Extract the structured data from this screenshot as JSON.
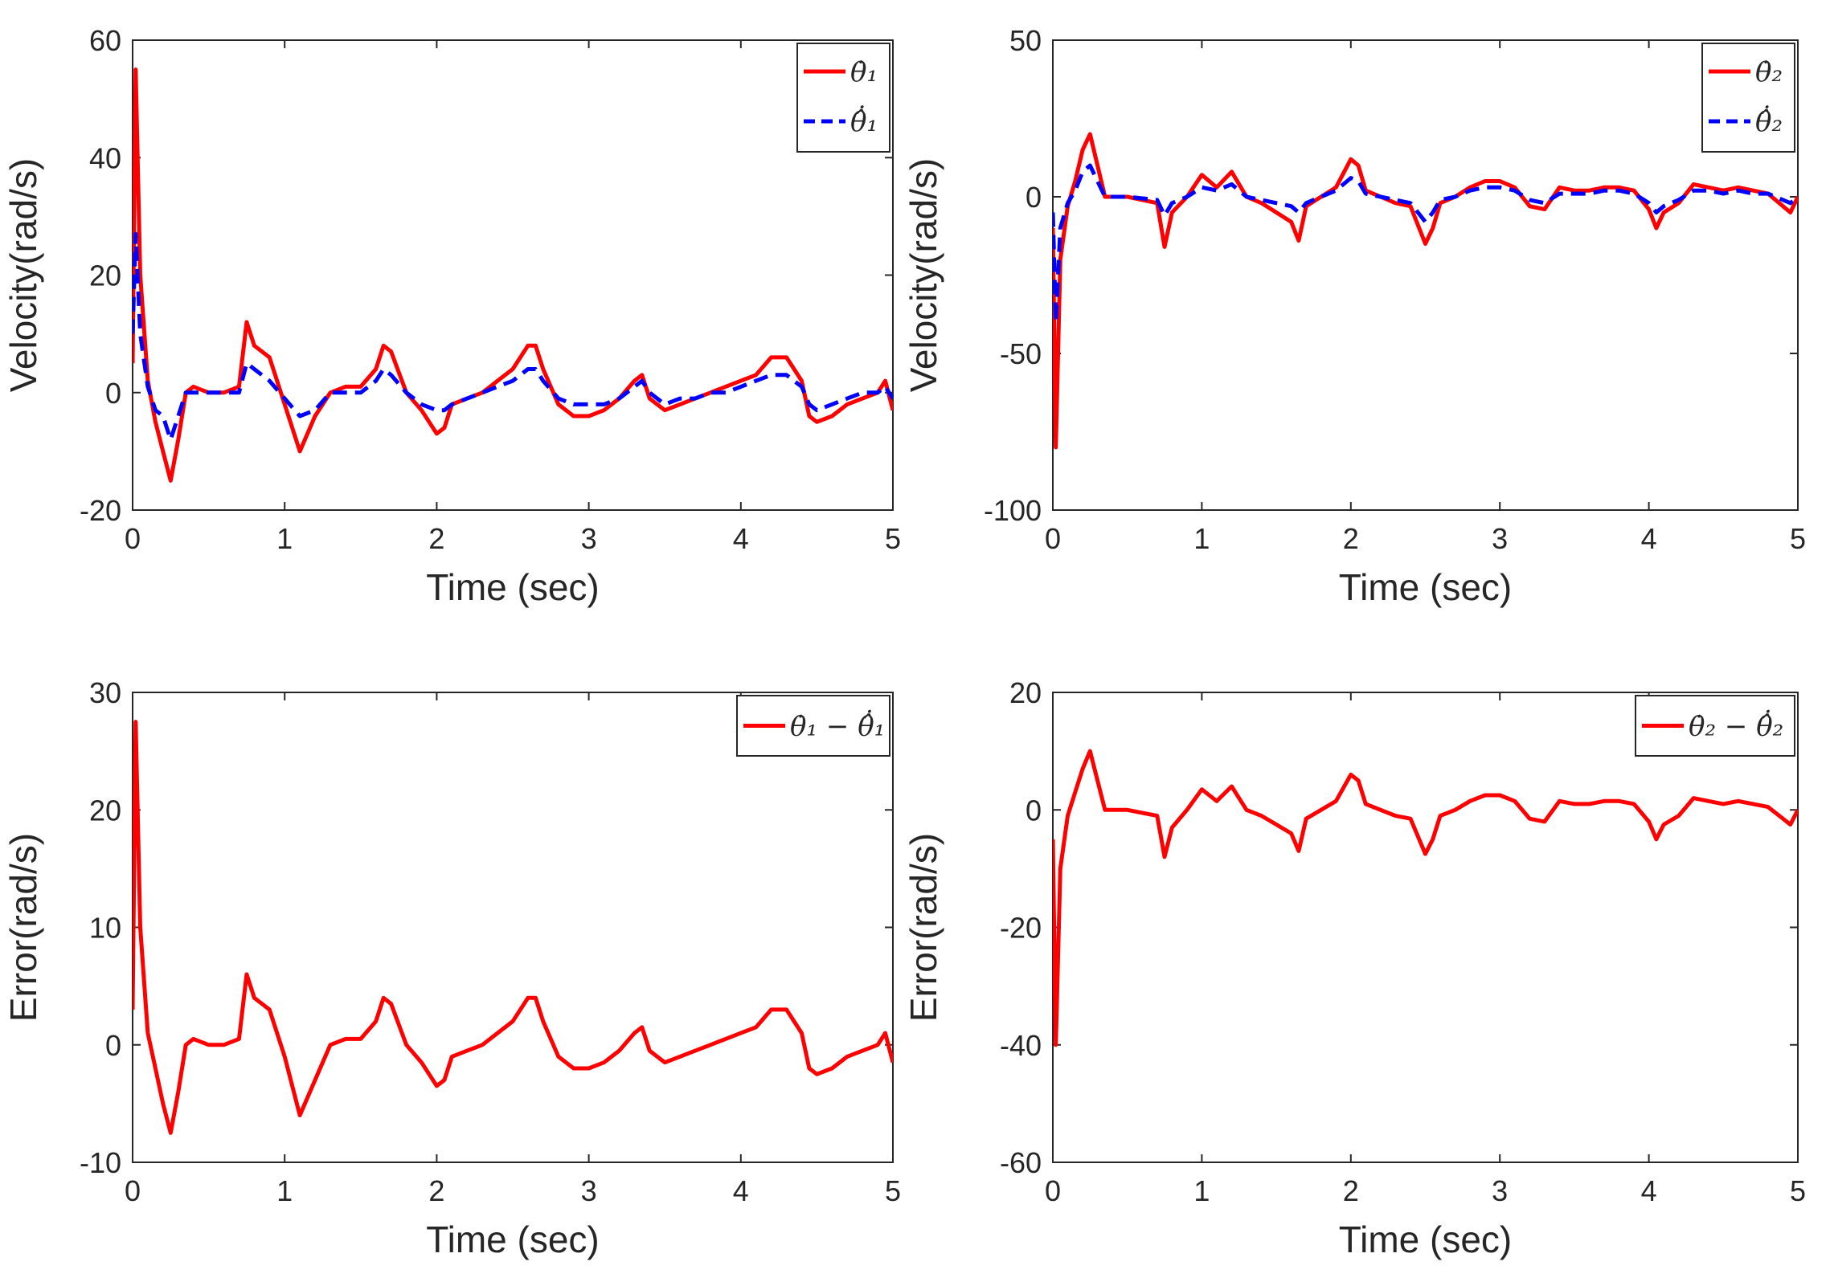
{
  "chart_data": [
    {
      "type": "line",
      "title": "",
      "xlabel": "Time (sec)",
      "ylabel": "Velocity(rad/s)",
      "xlim": [
        0,
        5
      ],
      "ylim": [
        -20,
        60
      ],
      "xticks": [
        "0",
        "1",
        "2",
        "3",
        "4",
        "5"
      ],
      "yticks": [
        "-20",
        "0",
        "20",
        "40",
        "60"
      ],
      "legend_position": "top-right",
      "grid": false,
      "x": [
        0,
        0.02,
        0.05,
        0.1,
        0.15,
        0.2,
        0.25,
        0.3,
        0.35,
        0.4,
        0.5,
        0.6,
        0.7,
        0.75,
        0.8,
        0.9,
        1.0,
        1.1,
        1.2,
        1.3,
        1.4,
        1.5,
        1.6,
        1.65,
        1.7,
        1.8,
        1.9,
        2.0,
        2.05,
        2.1,
        2.2,
        2.3,
        2.4,
        2.5,
        2.6,
        2.65,
        2.7,
        2.8,
        2.9,
        3.0,
        3.1,
        3.2,
        3.3,
        3.35,
        3.4,
        3.5,
        3.6,
        3.7,
        3.8,
        3.9,
        4.0,
        4.1,
        4.2,
        4.3,
        4.4,
        4.45,
        4.5,
        4.6,
        4.7,
        4.8,
        4.9,
        4.95,
        5.0
      ],
      "series": [
        {
          "name": "θ̇₁",
          "color": "#ff0000",
          "style": "solid",
          "values": [
            5,
            55,
            20,
            2,
            -5,
            -10,
            -15,
            -8,
            0,
            1,
            0,
            0,
            1,
            12,
            8,
            6,
            -2,
            -10,
            -4,
            0,
            1,
            1,
            4,
            8,
            7,
            0,
            -3,
            -7,
            -6,
            -2,
            -1,
            0,
            2,
            4,
            8,
            8,
            4,
            -2,
            -4,
            -4,
            -3,
            -1,
            2,
            3,
            -1,
            -3,
            -2,
            -1,
            0,
            1,
            2,
            3,
            6,
            6,
            2,
            -4,
            -5,
            -4,
            -2,
            -1,
            0,
            2,
            -3
          ]
        },
        {
          "name": "θ̂̇₁",
          "color": "#0000ff",
          "style": "dashed",
          "values": [
            10,
            27,
            10,
            1,
            -3,
            -4,
            -8,
            -4,
            0,
            0,
            0,
            0,
            0,
            5,
            4,
            2,
            -1,
            -4,
            -3,
            0,
            0,
            0,
            2,
            4,
            3,
            0,
            -2,
            -3,
            -3,
            -2,
            -1,
            0,
            1,
            2,
            4,
            4,
            2,
            -1,
            -2,
            -2,
            -2,
            -1,
            1,
            2,
            0,
            -2,
            -1,
            -1,
            0,
            0,
            1,
            2,
            3,
            3,
            1,
            -2,
            -3,
            -2,
            -1,
            0,
            0,
            1,
            -1
          ]
        }
      ]
    },
    {
      "type": "line",
      "title": "",
      "xlabel": "Time (sec)",
      "ylabel": "Velocity(rad/s)",
      "xlim": [
        0,
        5
      ],
      "ylim": [
        -100,
        50
      ],
      "xticks": [
        "0",
        "1",
        "2",
        "3",
        "4",
        "5"
      ],
      "yticks": [
        "-100",
        "-50",
        "0",
        "50"
      ],
      "legend_position": "top-right",
      "grid": false,
      "x": [
        0,
        0.02,
        0.05,
        0.1,
        0.15,
        0.2,
        0.25,
        0.3,
        0.35,
        0.5,
        0.7,
        0.75,
        0.8,
        0.9,
        1.0,
        1.1,
        1.2,
        1.3,
        1.4,
        1.5,
        1.6,
        1.65,
        1.7,
        1.8,
        1.9,
        2.0,
        2.05,
        2.1,
        2.2,
        2.3,
        2.4,
        2.5,
        2.55,
        2.6,
        2.7,
        2.8,
        2.9,
        3.0,
        3.1,
        3.2,
        3.3,
        3.4,
        3.5,
        3.6,
        3.7,
        3.8,
        3.9,
        4.0,
        4.05,
        4.1,
        4.2,
        4.3,
        4.4,
        4.5,
        4.6,
        4.7,
        4.8,
        4.9,
        4.95,
        5.0
      ],
      "series": [
        {
          "name": "θ̇₂",
          "color": "#ff0000",
          "style": "solid",
          "values": [
            -10,
            -80,
            -20,
            -3,
            5,
            15,
            20,
            10,
            0,
            0,
            -2,
            -16,
            -5,
            0,
            7,
            3,
            8,
            0,
            -2,
            -5,
            -8,
            -14,
            -3,
            0,
            3,
            12,
            10,
            2,
            0,
            -2,
            -3,
            -15,
            -10,
            -2,
            0,
            3,
            5,
            5,
            3,
            -3,
            -4,
            3,
            2,
            2,
            3,
            3,
            2,
            -4,
            -10,
            -5,
            -2,
            4,
            3,
            2,
            3,
            2,
            1,
            -3,
            -5,
            0
          ]
        },
        {
          "name": "θ̂̇₂",
          "color": "#0000ff",
          "style": "dashed",
          "values": [
            -5,
            -40,
            -10,
            -2,
            2,
            8,
            10,
            5,
            0,
            0,
            -1,
            -6,
            -2,
            0,
            3,
            2,
            4,
            0,
            -1,
            -2,
            -3,
            -5,
            -2,
            0,
            2,
            6,
            5,
            1,
            0,
            -1,
            -2,
            -8,
            -5,
            -1,
            0,
            2,
            3,
            3,
            2,
            -1,
            -2,
            1,
            1,
            1,
            2,
            2,
            1,
            -2,
            -5,
            -3,
            -1,
            2,
            2,
            1,
            2,
            1,
            1,
            -1,
            -2,
            0
          ]
        }
      ]
    },
    {
      "type": "line",
      "title": "",
      "xlabel": "Time (sec)",
      "ylabel": "Error(rad/s)",
      "xlim": [
        0,
        5
      ],
      "ylim": [
        -10,
        30
      ],
      "xticks": [
        "0",
        "1",
        "2",
        "3",
        "4",
        "5"
      ],
      "yticks": [
        "-10",
        "0",
        "10",
        "20",
        "30"
      ],
      "legend_position": "top-right",
      "grid": false,
      "x": [
        0,
        0.02,
        0.05,
        0.1,
        0.15,
        0.2,
        0.25,
        0.3,
        0.35,
        0.4,
        0.5,
        0.6,
        0.7,
        0.75,
        0.8,
        0.9,
        1.0,
        1.1,
        1.2,
        1.3,
        1.4,
        1.5,
        1.6,
        1.65,
        1.7,
        1.8,
        1.9,
        2.0,
        2.05,
        2.1,
        2.2,
        2.3,
        2.4,
        2.5,
        2.6,
        2.65,
        2.7,
        2.8,
        2.9,
        3.0,
        3.1,
        3.2,
        3.3,
        3.35,
        3.4,
        3.5,
        3.6,
        3.7,
        3.8,
        3.9,
        4.0,
        4.1,
        4.2,
        4.3,
        4.4,
        4.45,
        4.5,
        4.6,
        4.7,
        4.8,
        4.9,
        4.95,
        5.0
      ],
      "series": [
        {
          "name": "θ̇₁ − θ̂̇₁",
          "color": "#ff0000",
          "style": "solid",
          "values": [
            3,
            27.5,
            10,
            1,
            -2,
            -5,
            -7.5,
            -4,
            0,
            0.5,
            0,
            0,
            0.5,
            6,
            4,
            3,
            -1,
            -6,
            -3,
            0,
            0.5,
            0.5,
            2,
            4,
            3.5,
            0,
            -1.5,
            -3.5,
            -3,
            -1,
            -0.5,
            0,
            1,
            2,
            4,
            4,
            2,
            -1,
            -2,
            -2,
            -1.5,
            -0.5,
            1,
            1.5,
            -0.5,
            -1.5,
            -1,
            -0.5,
            0,
            0.5,
            1,
            1.5,
            3,
            3,
            1,
            -2,
            -2.5,
            -2,
            -1,
            -0.5,
            0,
            1,
            -1.5
          ]
        }
      ]
    },
    {
      "type": "line",
      "title": "",
      "xlabel": "Time (sec)",
      "ylabel": "Error(rad/s)",
      "xlim": [
        0,
        5
      ],
      "ylim": [
        -60,
        20
      ],
      "xticks": [
        "0",
        "1",
        "2",
        "3",
        "4",
        "5"
      ],
      "yticks": [
        "-60",
        "-40",
        "-20",
        "0",
        "20"
      ],
      "legend_position": "top-right",
      "grid": false,
      "x": [
        0,
        0.02,
        0.05,
        0.1,
        0.15,
        0.2,
        0.25,
        0.3,
        0.35,
        0.5,
        0.7,
        0.75,
        0.8,
        0.9,
        1.0,
        1.1,
        1.2,
        1.3,
        1.4,
        1.5,
        1.6,
        1.65,
        1.7,
        1.8,
        1.9,
        2.0,
        2.05,
        2.1,
        2.2,
        2.3,
        2.4,
        2.5,
        2.55,
        2.6,
        2.7,
        2.8,
        2.9,
        3.0,
        3.1,
        3.2,
        3.3,
        3.4,
        3.5,
        3.6,
        3.7,
        3.8,
        3.9,
        4.0,
        4.05,
        4.1,
        4.2,
        4.3,
        4.4,
        4.5,
        4.6,
        4.7,
        4.8,
        4.9,
        4.95,
        5.0
      ],
      "series": [
        {
          "name": "θ̇₂ − θ̂̇₂",
          "color": "#ff0000",
          "style": "solid",
          "values": [
            -5,
            -40,
            -10,
            -1,
            3,
            7,
            10,
            5,
            0,
            0,
            -1,
            -8,
            -3,
            0,
            3.5,
            1.5,
            4,
            0,
            -1,
            -2.5,
            -4,
            -7,
            -1.5,
            0,
            1.5,
            6,
            5,
            1,
            0,
            -1,
            -1.5,
            -7.5,
            -5,
            -1,
            0,
            1.5,
            2.5,
            2.5,
            1.5,
            -1.5,
            -2,
            1.5,
            1,
            1,
            1.5,
            1.5,
            1,
            -2,
            -5,
            -2.5,
            -1,
            2,
            1.5,
            1,
            1.5,
            1,
            0.5,
            -1.5,
            -2.5,
            0
          ]
        }
      ]
    }
  ]
}
